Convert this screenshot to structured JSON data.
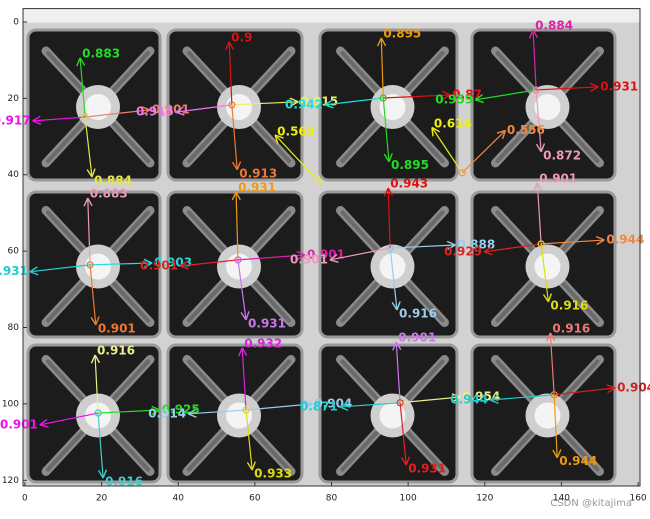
{
  "chart_data": {
    "type": "image",
    "xlim": [
      -0.5,
      160.5
    ],
    "ylim": [
      121.5,
      -3.5
    ],
    "xticks": [
      0,
      20,
      40,
      60,
      80,
      100,
      120,
      140,
      160
    ],
    "yticks": [
      0,
      20,
      40,
      60,
      80,
      100,
      120
    ],
    "watermark": "CSDN @kitajima",
    "arrows": [
      {
        "x": 15.7,
        "y": 24.9,
        "x2": 14.4,
        "y2": 9.4,
        "label": 0.883,
        "color": "#22dd22"
      },
      {
        "x": 15.7,
        "y": 24.9,
        "x2": 2,
        "y2": 25.9,
        "label": 0.917,
        "color": "#ee11ee"
      },
      {
        "x": 15.7,
        "y": 24.9,
        "x2": 32.6,
        "y2": 23.0,
        "label": 0.901,
        "color": "#e8806a"
      },
      {
        "x": 15.7,
        "y": 24.9,
        "x2": 17.5,
        "y2": 40.6,
        "label": 0.884,
        "color": "#e6e64a"
      },
      {
        "x": 54,
        "y": 21.7,
        "x2": 53.3,
        "y2": 5.2,
        "label": 0.9,
        "color": "#dd1111"
      },
      {
        "x": 54,
        "y": 21.7,
        "x2": 39.4,
        "y2": 23.6,
        "label": 0.915,
        "color": "#ee77ee"
      },
      {
        "x": 54,
        "y": 21.7,
        "x2": 71.3,
        "y2": 20.9,
        "label": 0.915,
        "color": "#eeee66"
      },
      {
        "x": 54,
        "y": 21.7,
        "x2": 55.4,
        "y2": 38.7,
        "label": 0.913,
        "color": "#ee7733"
      },
      {
        "x": 93.5,
        "y": 19.9,
        "x2": 93,
        "y2": 4.2,
        "label": 0.895,
        "color": "#ee9911"
      },
      {
        "x": 93.5,
        "y": 19.9,
        "x2": 78.3,
        "y2": 21.7,
        "label": 0.942,
        "color": "#22dddd"
      },
      {
        "x": 93.5,
        "y": 19.9,
        "x2": 111,
        "y2": 19.1,
        "label": 0.87,
        "color": "#dd1111"
      },
      {
        "x": 93.5,
        "y": 19.9,
        "x2": 95,
        "y2": 36.6,
        "label": 0.895,
        "color": "#22dd22"
      },
      {
        "x": 133.4,
        "y": 17.8,
        "x2": 132.6,
        "y2": 2.1,
        "label": 0.884,
        "color": "#dd22aa"
      },
      {
        "x": 133.4,
        "y": 17.8,
        "x2": 117.5,
        "y2": 20.4,
        "label": 0.959,
        "color": "#22dd22"
      },
      {
        "x": 133.4,
        "y": 17.8,
        "x2": 149.6,
        "y2": 17,
        "label": 0.931,
        "color": "#dd1111"
      },
      {
        "x": 133.4,
        "y": 17.8,
        "x2": 134.7,
        "y2": 34,
        "label": 0.872,
        "color": "#ee99bb"
      },
      {
        "x": 76.5,
        "y": 41.6,
        "x2": 65.3,
        "y2": 29.6,
        "label": 0.569,
        "color": "#eeee11"
      },
      {
        "x": 114.1,
        "y": 39.5,
        "x2": 106.2,
        "y2": 27.6,
        "label": 0.614,
        "color": "#eeee11"
      },
      {
        "x": 114.1,
        "y": 39.5,
        "x2": 125.4,
        "y2": 28.4,
        "label": 0.556,
        "color": "#ee8844"
      },
      {
        "x": 17,
        "y": 63.6,
        "x2": 16.4,
        "y2": 46.1,
        "label": 0.883,
        "color": "#ee99bb"
      },
      {
        "x": 17,
        "y": 63.6,
        "x2": 1.3,
        "y2": 65.4,
        "label": 0.931,
        "color": "#22cccc"
      },
      {
        "x": 17,
        "y": 63.6,
        "x2": 33.2,
        "y2": 63.1,
        "label": 0.903,
        "color": "#22dddd"
      },
      {
        "x": 17,
        "y": 63.6,
        "x2": 18.5,
        "y2": 79.3,
        "label": 0.901,
        "color": "#ee7733"
      },
      {
        "x": 55.6,
        "y": 62.3,
        "x2": 55.1,
        "y2": 44.5,
        "label": 0.931,
        "color": "#ee9911"
      },
      {
        "x": 55.6,
        "y": 62.3,
        "x2": 40.5,
        "y2": 63.9,
        "label": 0.901,
        "color": "#dd2222"
      },
      {
        "x": 55.6,
        "y": 62.3,
        "x2": 73.1,
        "y2": 61,
        "label": 0.901,
        "color": "#dd22aa"
      },
      {
        "x": 55.6,
        "y": 62.3,
        "x2": 57.7,
        "y2": 78,
        "label": 0.931,
        "color": "#cc77ee"
      },
      {
        "x": 95.3,
        "y": 59.2,
        "x2": 94.8,
        "y2": 43.5,
        "label": 0.943,
        "color": "#dd1111"
      },
      {
        "x": 95.3,
        "y": 59.2,
        "x2": 79.6,
        "y2": 62.3,
        "label": 0.901,
        "color": "#ee99bb"
      },
      {
        "x": 95.3,
        "y": 59.2,
        "x2": 112.3,
        "y2": 58.4,
        "label": 0.888,
        "color": "#99ccee"
      },
      {
        "x": 95.3,
        "y": 59.2,
        "x2": 97.1,
        "y2": 75.4,
        "label": 0.916,
        "color": "#99ccee"
      },
      {
        "x": 134.7,
        "y": 58.1,
        "x2": 133.7,
        "y2": 42.1,
        "label": 0.901,
        "color": "#ee99bb"
      },
      {
        "x": 134.7,
        "y": 58.1,
        "x2": 119.8,
        "y2": 60.2,
        "label": 0.929,
        "color": "#dd2222"
      },
      {
        "x": 134.7,
        "y": 58.1,
        "x2": 151.2,
        "y2": 57.1,
        "label": 0.944,
        "color": "#ee8844"
      },
      {
        "x": 134.7,
        "y": 58.1,
        "x2": 136.6,
        "y2": 73.3,
        "label": 0.916,
        "color": "#dddd11"
      },
      {
        "x": 19.1,
        "y": 102.4,
        "x2": 18.3,
        "y2": 87.2,
        "label": 0.916,
        "color": "#eeee88"
      },
      {
        "x": 19.1,
        "y": 102.4,
        "x2": 3.9,
        "y2": 105.5,
        "label": 0.901,
        "color": "#ee11ee"
      },
      {
        "x": 19.1,
        "y": 102.4,
        "x2": 35.2,
        "y2": 101.6,
        "label": 0.925,
        "color": "#22dd22"
      },
      {
        "x": 19.1,
        "y": 102.4,
        "x2": 20.4,
        "y2": 119.4,
        "label": 0.916,
        "color": "#44cccc"
      },
      {
        "x": 57.7,
        "y": 101.6,
        "x2": 56.7,
        "y2": 85.3,
        "label": 0.932,
        "color": "#dd22dd"
      },
      {
        "x": 57.7,
        "y": 101.6,
        "x2": 42.6,
        "y2": 102.6,
        "label": 0.914,
        "color": "#99ccee"
      },
      {
        "x": 57.7,
        "y": 101.6,
        "x2": 75,
        "y2": 100,
        "label": 0.904,
        "color": "#99ccee"
      },
      {
        "x": 57.7,
        "y": 101.6,
        "x2": 59.3,
        "y2": 117.3,
        "label": 0.933,
        "color": "#dddd11"
      },
      {
        "x": 97.9,
        "y": 99.7,
        "x2": 96.9,
        "y2": 83.8,
        "label": 0.901,
        "color": "#cc77ee"
      },
      {
        "x": 97.9,
        "y": 99.7,
        "x2": 82.2,
        "y2": 100.8,
        "label": 0.871,
        "color": "#22cccc"
      },
      {
        "x": 97.9,
        "y": 99.7,
        "x2": 113.6,
        "y2": 98.2,
        "label": 0.954,
        "color": "#eeee88"
      },
      {
        "x": 97.9,
        "y": 99.7,
        "x2": 99.5,
        "y2": 116,
        "label": 0.931,
        "color": "#dd2222"
      },
      {
        "x": 138.1,
        "y": 97.6,
        "x2": 137.1,
        "y2": 81.4,
        "label": 0.916,
        "color": "#ee7777"
      },
      {
        "x": 138.1,
        "y": 97.6,
        "x2": 121.4,
        "y2": 99,
        "label": 0.944,
        "color": "#22cccc"
      },
      {
        "x": 138.1,
        "y": 97.6,
        "x2": 154,
        "y2": 95.8,
        "label": 0.904,
        "color": "#cc2222"
      },
      {
        "x": 138.1,
        "y": 97.6,
        "x2": 138.9,
        "y2": 114.1,
        "label": 0.944,
        "color": "#ee9911"
      }
    ]
  }
}
